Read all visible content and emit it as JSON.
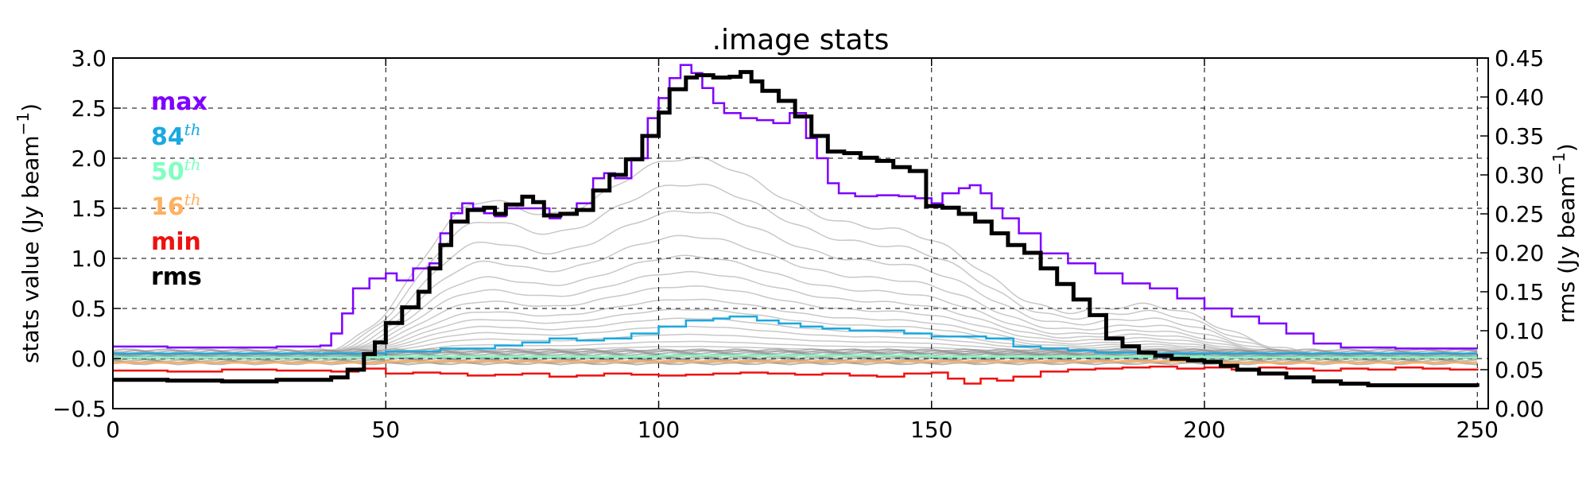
{
  "chart_data": {
    "type": "line",
    "title": ".image stats",
    "xlabel": "",
    "ylabel": "stats value (Jy beam",
    "ylabel_sup": "−1",
    "ylabel_close": ")",
    "ylabel_right": "rms (Jy beam",
    "ylabel_right_sup": "−1",
    "ylabel_right_close": ")",
    "xlim": [
      0,
      252
    ],
    "ylim": [
      -0.5,
      3.0
    ],
    "ylim_right": [
      0.0,
      0.45
    ],
    "x_ticks": [
      0,
      50,
      100,
      150,
      200,
      250
    ],
    "y_ticks": [
      -0.5,
      0.0,
      0.5,
      1.0,
      1.5,
      2.0,
      2.5,
      3.0
    ],
    "y_tick_labels": [
      "−0.5",
      "0.0",
      "0.5",
      "1.0",
      "1.5",
      "2.0",
      "2.5",
      "3.0"
    ],
    "y_right_ticks": [
      0.0,
      0.05,
      0.1,
      0.15,
      0.2,
      0.25,
      0.3,
      0.35,
      0.4,
      0.45
    ],
    "y_right_tick_labels": [
      "0.00",
      "0.05",
      "0.10",
      "0.15",
      "0.20",
      "0.25",
      "0.30",
      "0.35",
      "0.40",
      "0.45"
    ],
    "grid": true,
    "legend_position": "top-left",
    "legend": [
      {
        "label": "max",
        "sup": "",
        "color": "#7f00ff"
      },
      {
        "label": "84",
        "sup": "th",
        "color": "#1aa9e0"
      },
      {
        "label": "50",
        "sup": "th",
        "color": "#7fffc0"
      },
      {
        "label": "16",
        "sup": "th",
        "color": "#ffb060"
      },
      {
        "label": "min",
        "sup": "",
        "color": "#ee1111"
      },
      {
        "label": "rms",
        "sup": "",
        "color": "#000000"
      }
    ],
    "series": [
      {
        "name": "max",
        "axis": "left",
        "step": true,
        "color": "#7f00ff",
        "points": [
          [
            0,
            0.12
          ],
          [
            10,
            0.11
          ],
          [
            20,
            0.11
          ],
          [
            30,
            0.12
          ],
          [
            38,
            0.13
          ],
          [
            40,
            0.25
          ],
          [
            42,
            0.45
          ],
          [
            44,
            0.7
          ],
          [
            47,
            0.8
          ],
          [
            50,
            0.85
          ],
          [
            52,
            0.78
          ],
          [
            55,
            0.9
          ],
          [
            58,
            0.95
          ],
          [
            60,
            1.25
          ],
          [
            62,
            1.45
          ],
          [
            64,
            1.55
          ],
          [
            66,
            1.5
          ],
          [
            68,
            1.45
          ],
          [
            70,
            1.42
          ],
          [
            72,
            1.5
          ],
          [
            75,
            1.5
          ],
          [
            78,
            1.5
          ],
          [
            80,
            1.4
          ],
          [
            82,
            1.45
          ],
          [
            85,
            1.55
          ],
          [
            88,
            1.8
          ],
          [
            90,
            1.85
          ],
          [
            92,
            1.8
          ],
          [
            95,
            2.0
          ],
          [
            98,
            2.4
          ],
          [
            100,
            2.6
          ],
          [
            102,
            2.8
          ],
          [
            104,
            2.93
          ],
          [
            106,
            2.85
          ],
          [
            108,
            2.7
          ],
          [
            110,
            2.55
          ],
          [
            112,
            2.45
          ],
          [
            115,
            2.4
          ],
          [
            118,
            2.38
          ],
          [
            121,
            2.35
          ],
          [
            124,
            2.45
          ],
          [
            127,
            2.2
          ],
          [
            129,
            2.0
          ],
          [
            131,
            1.75
          ],
          [
            133,
            1.65
          ],
          [
            136,
            1.62
          ],
          [
            140,
            1.63
          ],
          [
            144,
            1.62
          ],
          [
            147,
            1.6
          ],
          [
            150,
            1.55
          ],
          [
            152,
            1.65
          ],
          [
            155,
            1.7
          ],
          [
            157,
            1.73
          ],
          [
            159,
            1.65
          ],
          [
            161,
            1.5
          ],
          [
            163,
            1.4
          ],
          [
            166,
            1.25
          ],
          [
            170,
            1.05
          ],
          [
            175,
            0.95
          ],
          [
            180,
            0.85
          ],
          [
            185,
            0.75
          ],
          [
            190,
            0.7
          ],
          [
            195,
            0.6
          ],
          [
            200,
            0.5
          ],
          [
            205,
            0.42
          ],
          [
            210,
            0.35
          ],
          [
            215,
            0.25
          ],
          [
            220,
            0.15
          ],
          [
            225,
            0.11
          ],
          [
            235,
            0.1
          ],
          [
            250,
            0.1
          ]
        ]
      },
      {
        "name": "84th",
        "axis": "left",
        "step": true,
        "color": "#1aa9e0",
        "points": [
          [
            0,
            0.05
          ],
          [
            40,
            0.05
          ],
          [
            50,
            0.07
          ],
          [
            60,
            0.1
          ],
          [
            70,
            0.13
          ],
          [
            75,
            0.16
          ],
          [
            80,
            0.2
          ],
          [
            85,
            0.18
          ],
          [
            90,
            0.2
          ],
          [
            95,
            0.25
          ],
          [
            100,
            0.32
          ],
          [
            105,
            0.38
          ],
          [
            110,
            0.4
          ],
          [
            113,
            0.42
          ],
          [
            118,
            0.38
          ],
          [
            122,
            0.35
          ],
          [
            126,
            0.32
          ],
          [
            130,
            0.3
          ],
          [
            135,
            0.28
          ],
          [
            140,
            0.28
          ],
          [
            145,
            0.25
          ],
          [
            150,
            0.22
          ],
          [
            155,
            0.22
          ],
          [
            160,
            0.2
          ],
          [
            165,
            0.12
          ],
          [
            170,
            0.1
          ],
          [
            175,
            0.08
          ],
          [
            180,
            0.06
          ],
          [
            190,
            0.05
          ],
          [
            250,
            0.05
          ]
        ]
      },
      {
        "name": "50th",
        "axis": "left",
        "step": true,
        "color": "#7fffc0",
        "points": [
          [
            0,
            0.01
          ],
          [
            50,
            0.02
          ],
          [
            100,
            0.03
          ],
          [
            150,
            0.02
          ],
          [
            200,
            0.01
          ],
          [
            250,
            0.01
          ]
        ]
      },
      {
        "name": "16th",
        "axis": "left",
        "step": true,
        "color": "#ffb060",
        "points": [
          [
            0,
            -0.04
          ],
          [
            50,
            -0.03
          ],
          [
            100,
            -0.03
          ],
          [
            150,
            -0.03
          ],
          [
            200,
            -0.04
          ],
          [
            250,
            -0.04
          ]
        ]
      },
      {
        "name": "min",
        "axis": "left",
        "step": true,
        "color": "#ee1111",
        "points": [
          [
            0,
            -0.12
          ],
          [
            10,
            -0.13
          ],
          [
            20,
            -0.11
          ],
          [
            30,
            -0.12
          ],
          [
            40,
            -0.13
          ],
          [
            45,
            -0.1
          ],
          [
            50,
            -0.15
          ],
          [
            55,
            -0.14
          ],
          [
            60,
            -0.15
          ],
          [
            65,
            -0.17
          ],
          [
            70,
            -0.16
          ],
          [
            75,
            -0.15
          ],
          [
            80,
            -0.18
          ],
          [
            85,
            -0.17
          ],
          [
            90,
            -0.15
          ],
          [
            95,
            -0.16
          ],
          [
            100,
            -0.17
          ],
          [
            105,
            -0.16
          ],
          [
            110,
            -0.15
          ],
          [
            115,
            -0.14
          ],
          [
            120,
            -0.15
          ],
          [
            125,
            -0.16
          ],
          [
            130,
            -0.15
          ],
          [
            135,
            -0.17
          ],
          [
            140,
            -0.18
          ],
          [
            145,
            -0.15
          ],
          [
            150,
            -0.14
          ],
          [
            153,
            -0.2
          ],
          [
            156,
            -0.25
          ],
          [
            159,
            -0.2
          ],
          [
            162,
            -0.22
          ],
          [
            165,
            -0.18
          ],
          [
            170,
            -0.13
          ],
          [
            175,
            -0.11
          ],
          [
            180,
            -0.1
          ],
          [
            185,
            -0.09
          ],
          [
            190,
            -0.08
          ],
          [
            195,
            -0.1
          ],
          [
            200,
            -0.09
          ],
          [
            205,
            -0.11
          ],
          [
            210,
            -0.09
          ],
          [
            215,
            -0.1
          ],
          [
            220,
            -0.12
          ],
          [
            225,
            -0.1
          ],
          [
            230,
            -0.11
          ],
          [
            235,
            -0.09
          ],
          [
            240,
            -0.1
          ],
          [
            245,
            -0.11
          ],
          [
            250,
            -0.1
          ]
        ]
      },
      {
        "name": "rms",
        "axis": "right",
        "step": true,
        "color": "#000000",
        "width": 5,
        "points": [
          [
            0,
            0.037
          ],
          [
            10,
            0.036
          ],
          [
            20,
            0.035
          ],
          [
            30,
            0.037
          ],
          [
            35,
            0.037
          ],
          [
            40,
            0.04
          ],
          [
            43,
            0.05
          ],
          [
            46,
            0.07
          ],
          [
            48,
            0.085
          ],
          [
            50,
            0.11
          ],
          [
            53,
            0.13
          ],
          [
            56,
            0.15
          ],
          [
            58,
            0.18
          ],
          [
            60,
            0.21
          ],
          [
            62,
            0.24
          ],
          [
            65,
            0.255
          ],
          [
            68,
            0.258
          ],
          [
            70,
            0.25
          ],
          [
            72,
            0.262
          ],
          [
            75,
            0.272
          ],
          [
            77,
            0.265
          ],
          [
            79,
            0.248
          ],
          [
            82,
            0.25
          ],
          [
            85,
            0.255
          ],
          [
            88,
            0.28
          ],
          [
            91,
            0.3
          ],
          [
            94,
            0.32
          ],
          [
            97,
            0.35
          ],
          [
            100,
            0.38
          ],
          [
            102,
            0.41
          ],
          [
            105,
            0.425
          ],
          [
            107,
            0.428
          ],
          [
            110,
            0.425
          ],
          [
            113,
            0.426
          ],
          [
            115,
            0.432
          ],
          [
            117,
            0.42
          ],
          [
            119,
            0.408
          ],
          [
            122,
            0.395
          ],
          [
            125,
            0.375
          ],
          [
            128,
            0.35
          ],
          [
            131,
            0.33
          ],
          [
            134,
            0.328
          ],
          [
            137,
            0.322
          ],
          [
            140,
            0.318
          ],
          [
            143,
            0.31
          ],
          [
            146,
            0.305
          ],
          [
            149,
            0.26
          ],
          [
            152,
            0.258
          ],
          [
            155,
            0.25
          ],
          [
            158,
            0.24
          ],
          [
            161,
            0.225
          ],
          [
            164,
            0.21
          ],
          [
            167,
            0.2
          ],
          [
            170,
            0.18
          ],
          [
            173,
            0.16
          ],
          [
            176,
            0.14
          ],
          [
            179,
            0.12
          ],
          [
            182,
            0.09
          ],
          [
            185,
            0.08
          ],
          [
            188,
            0.072
          ],
          [
            191,
            0.068
          ],
          [
            194,
            0.064
          ],
          [
            197,
            0.062
          ],
          [
            200,
            0.06
          ],
          [
            203,
            0.055
          ],
          [
            206,
            0.05
          ],
          [
            210,
            0.045
          ],
          [
            215,
            0.04
          ],
          [
            220,
            0.035
          ],
          [
            225,
            0.032
          ],
          [
            230,
            0.03
          ],
          [
            240,
            0.03
          ],
          [
            250,
            0.028
          ]
        ]
      }
    ],
    "percentile_envelopes": {
      "color": "#c8c8c8",
      "bases": [
        0.06,
        0.1,
        0.15,
        0.22,
        0.3,
        0.38,
        0.47,
        0.57,
        0.7,
        0.84,
        1.0,
        1.2,
        1.45,
        1.72,
        1.98
      ]
    }
  }
}
